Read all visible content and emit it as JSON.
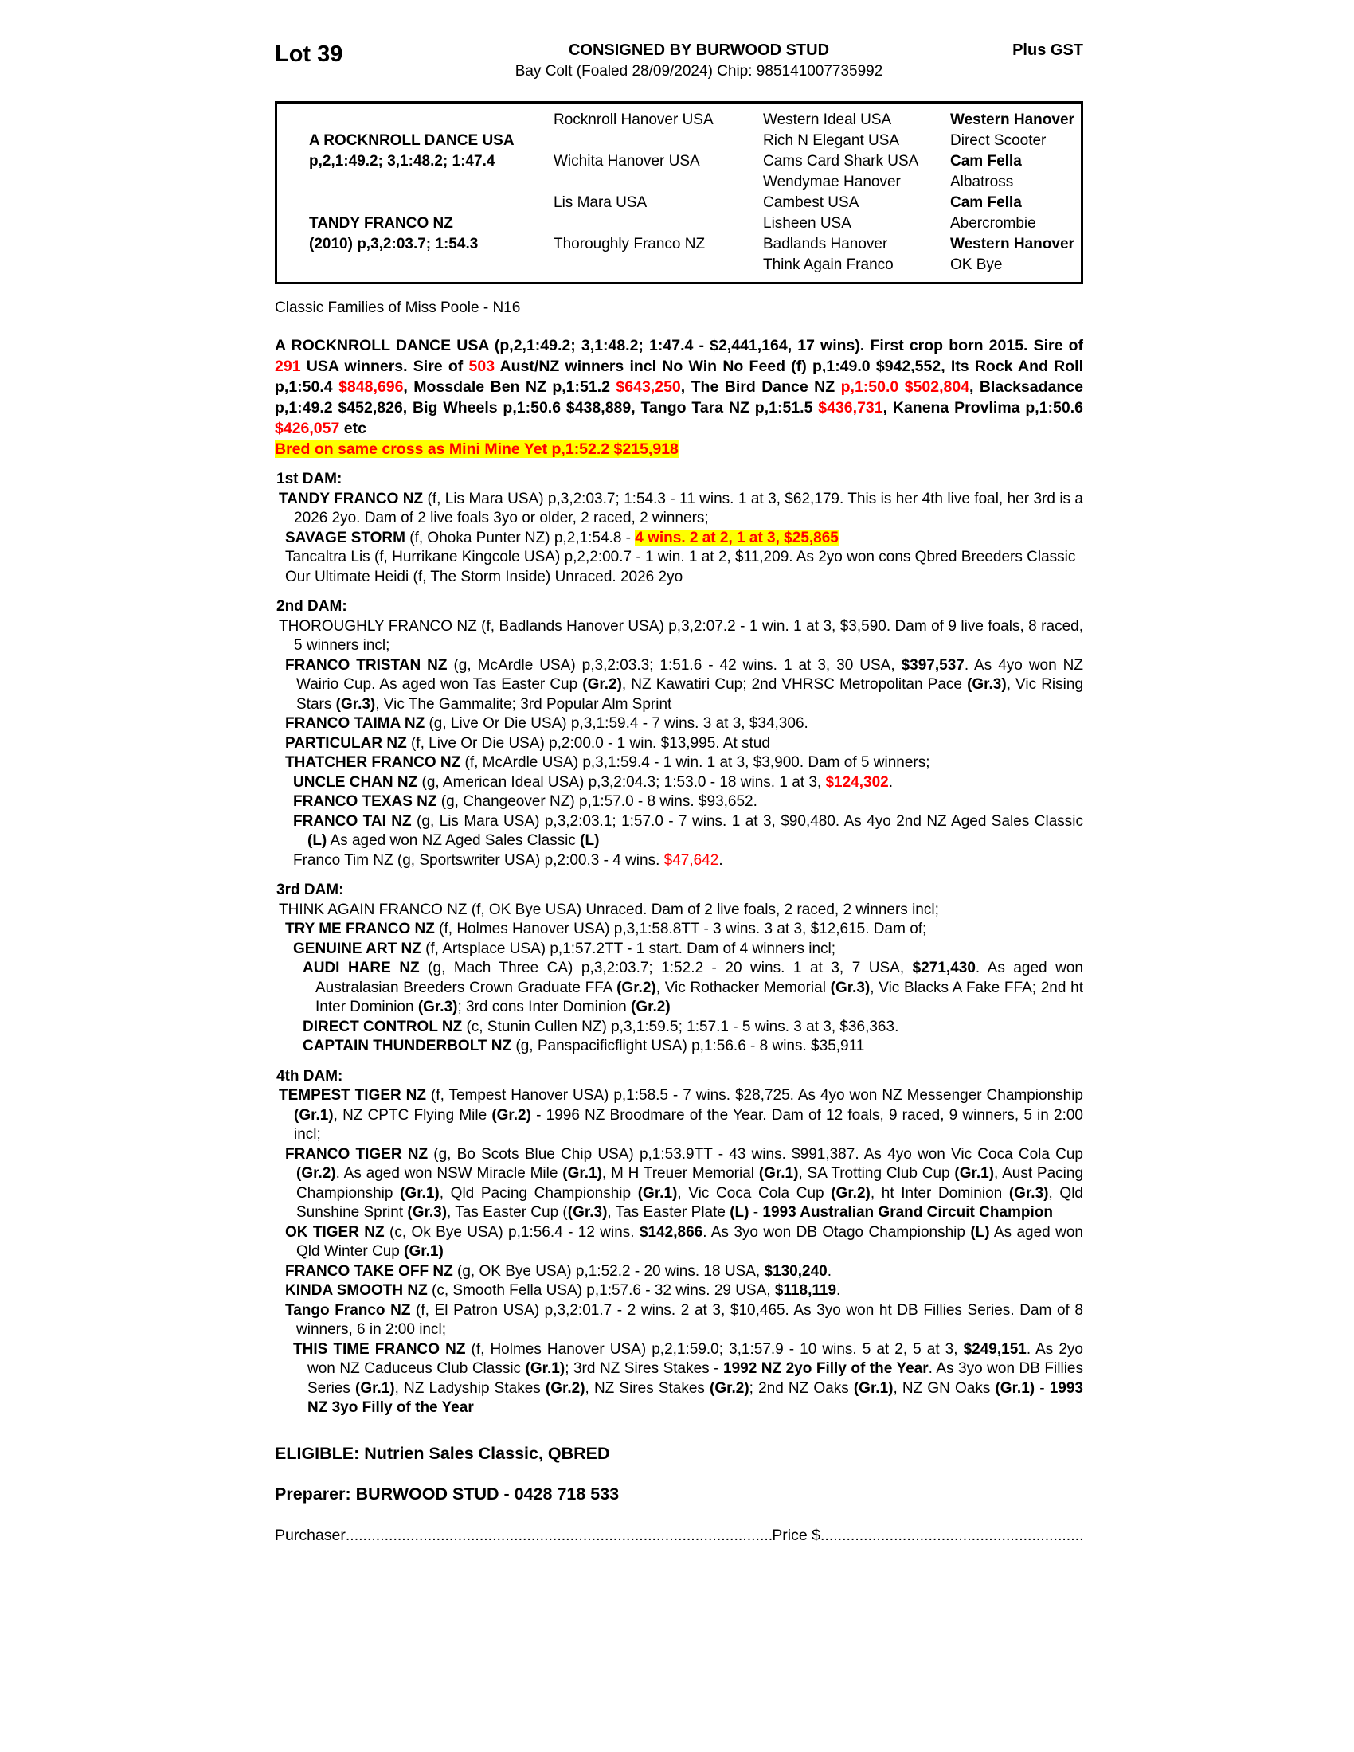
{
  "page": {
    "lot": "Lot 39",
    "consigned": "CONSIGNED BY BURWOOD STUD",
    "plus_gst": "Plus GST",
    "subtitle": "Bay Colt (Foaled 28/09/2024) Chip: 985141007735992",
    "family": "Classic Families of Miss Poole - N16",
    "eligible": "ELIGIBLE: Nutrien Sales Classic, QBRED",
    "preparer": "Preparer: BURWOOD STUD - 0428 718 533",
    "purchaser_label": "Purchaser",
    "purchaser_dots": "..............................................................................................................................",
    "price_label": "Price $",
    "price_dots": "......................................................................",
    "colors": {
      "accent_red": "#ff0000",
      "highlight_yellow": "#ffff00",
      "text": "#000000"
    }
  },
  "pedigree_table": {
    "rows": [
      {
        "c1": "",
        "c2": "Rocknroll Hanover USA",
        "c3": "Western Ideal USA",
        "c4": "Western Hanover",
        "c4b": true
      },
      {
        "c1": "A ROCKNROLL DANCE USA",
        "c2": "",
        "c3": "Rich N Elegant USA",
        "c4": "Direct Scooter",
        "c4b": false
      },
      {
        "c1": "p,2,1:49.2; 3,1:48.2; 1:47.4",
        "c2": "Wichita Hanover USA",
        "c3": "Cams Card Shark USA",
        "c4": "Cam Fella",
        "c4b": true
      },
      {
        "c1": "",
        "c2": "",
        "c3": "Wendymae Hanover",
        "c4": "Albatross",
        "c4b": false
      },
      {
        "c1": "",
        "c2": "Lis Mara USA",
        "c3": "Cambest USA",
        "c4": "Cam Fella",
        "c4b": true
      },
      {
        "c1": "TANDY FRANCO NZ",
        "c2": "",
        "c3": "Lisheen USA",
        "c4": "Abercrombie",
        "c4b": false
      },
      {
        "c1": "(2010) p,3,2:03.7; 1:54.3",
        "c2": "Thoroughly Franco NZ",
        "c3": "Badlands Hanover",
        "c4": "Western Hanover",
        "c4b": true
      },
      {
        "c1": "",
        "c2": "",
        "c3": "Think Again Franco",
        "c4": "OK Bye",
        "c4b": false
      }
    ]
  },
  "sire": {
    "para": [
      {
        "t": "A ROCKNROLL DANCE USA  (p,2,1:49.2; 3,1:48.2; 1:47.4 - $2,441,164, 17 wins). First crop born 2015. Sire of ",
        "s": "b"
      },
      {
        "t": "291",
        "s": "rb"
      },
      {
        "t": " USA winners. Sire of ",
        "s": "b"
      },
      {
        "t": "503",
        "s": "rb"
      },
      {
        "t": " Aust/NZ winners incl No Win No Feed (f) p,1:49.0 $942,552, Its Rock And Roll p,1:50.4 ",
        "s": "b"
      },
      {
        "t": "$848,696",
        "s": "rb"
      },
      {
        "t": ", Mossdale Ben NZ p,1:51.2 ",
        "s": "b"
      },
      {
        "t": "$643,250",
        "s": "rb"
      },
      {
        "t": ", The Bird Dance NZ ",
        "s": "b"
      },
      {
        "t": "p,1:50.0 $502,804",
        "s": "rb"
      },
      {
        "t": ", Blacksadance p,1:49.2 $452,826, Big Wheels p,1:50.6 $438,889, Tango Tara NZ p,1:51.5 ",
        "s": "b"
      },
      {
        "t": "$436,731",
        "s": "rb"
      },
      {
        "t": ", Kanena Provlima p,1:50.6 ",
        "s": "b"
      },
      {
        "t": "$426,057",
        "s": "rb"
      },
      {
        "t": " etc",
        "s": "b"
      }
    ],
    "cross": [
      {
        "t": "Bred on same cross as Mini Mine Yet p,1:52.2 $215,918",
        "s": "hl"
      }
    ]
  },
  "dam_sections": [
    {
      "heading": "1st DAM:",
      "entries": [
        {
          "indent": 1,
          "segments": [
            {
              "t": "TANDY FRANCO NZ ",
              "s": "b"
            },
            {
              "t": "(f, Lis Mara USA) p,3,2:03.7; 1:54.3 - 11 wins. 1 at 3, $62,179. This is her 4th live foal, her 3rd is a 2026 2yo. Dam of 2 live foals 3yo or older, 2 raced, 2 winners;",
              "s": ""
            }
          ]
        },
        {
          "indent": 2,
          "segments": [
            {
              "t": "SAVAGE STORM ",
              "s": "b"
            },
            {
              "t": "(f, Ohoka Punter NZ) p,2,1:54.8 - ",
              "s": ""
            },
            {
              "t": "4 wins. 2 at 2, 1 at 3, $25,865",
              "s": "hl"
            }
          ]
        },
        {
          "indent": 2,
          "segments": [
            {
              "t": "Tancaltra Lis (f, Hurrikane Kingcole USA) p,2,2:00.7 - 1 win. 1 at 2, $11,209. As 2yo won cons Qbred Breeders Classic",
              "s": ""
            }
          ]
        },
        {
          "indent": 2,
          "segments": [
            {
              "t": "Our Ultimate Heidi (f, The Storm Inside) Unraced. 2026 2yo",
              "s": ""
            }
          ]
        }
      ]
    },
    {
      "heading": "2nd DAM:",
      "entries": [
        {
          "indent": 1,
          "segments": [
            {
              "t": "THOROUGHLY FRANCO NZ (f, Badlands Hanover USA) p,3,2:07.2 - 1 win. 1 at 3, $3,590. Dam of 9 live foals, 8 raced, 5 winners incl;",
              "s": ""
            }
          ]
        },
        {
          "indent": 2,
          "segments": [
            {
              "t": "FRANCO TRISTAN NZ ",
              "s": "b"
            },
            {
              "t": "(g, McArdle USA) p,3,2:03.3; 1:51.6 - 42 wins. 1 at 3, 30 USA, ",
              "s": ""
            },
            {
              "t": "$397,537",
              "s": "b"
            },
            {
              "t": ". As 4yo won NZ Wairio Cup. As aged won Tas Easter Cup ",
              "s": ""
            },
            {
              "t": "(Gr.2)",
              "s": "b"
            },
            {
              "t": ", NZ Kawatiri Cup; 2nd VHRSC Metropolitan Pace ",
              "s": ""
            },
            {
              "t": "(Gr.3)",
              "s": "b"
            },
            {
              "t": ", Vic Rising Stars ",
              "s": ""
            },
            {
              "t": "(Gr.3)",
              "s": "b"
            },
            {
              "t": ", Vic The Gammalite; 3rd Popular Alm Sprint",
              "s": ""
            }
          ]
        },
        {
          "indent": 2,
          "segments": [
            {
              "t": "FRANCO TAIMA NZ ",
              "s": "b"
            },
            {
              "t": "(g, Live Or Die USA) p,3,1:59.4 - 7 wins. 3 at 3, $34,306.",
              "s": ""
            }
          ]
        },
        {
          "indent": 2,
          "segments": [
            {
              "t": "PARTICULAR NZ ",
              "s": "b"
            },
            {
              "t": "(f, Live Or Die USA) p,2:00.0 - 1 win. $13,995. At stud",
              "s": ""
            }
          ]
        },
        {
          "indent": 2,
          "segments": [
            {
              "t": "THATCHER FRANCO NZ ",
              "s": "b"
            },
            {
              "t": "(f, McArdle USA) p,3,1:59.4 - 1 win. 1 at 3, $3,900. Dam of 5 winners;",
              "s": ""
            }
          ]
        },
        {
          "indent": 3,
          "segments": [
            {
              "t": "UNCLE CHAN NZ ",
              "s": "b"
            },
            {
              "t": "(g, American Ideal USA) p,3,2:04.3; 1:53.0 - 18 wins. 1 at 3, ",
              "s": ""
            },
            {
              "t": "$124,302",
              "s": "rb"
            },
            {
              "t": ".",
              "s": ""
            }
          ]
        },
        {
          "indent": 3,
          "segments": [
            {
              "t": "FRANCO TEXAS NZ ",
              "s": "b"
            },
            {
              "t": "(g, Changeover NZ) p,1:57.0 - 8 wins. $93,652.",
              "s": ""
            }
          ]
        },
        {
          "indent": 3,
          "segments": [
            {
              "t": "FRANCO TAI NZ ",
              "s": "b"
            },
            {
              "t": "(g, Lis Mara USA) p,3,2:03.1; 1:57.0 - 7 wins. 1 at 3, $90,480. As 4yo 2nd NZ Aged Sales Classic ",
              "s": ""
            },
            {
              "t": "(L)",
              "s": "b"
            },
            {
              "t": " As aged won NZ Aged Sales Classic ",
              "s": ""
            },
            {
              "t": "(L)",
              "s": "b"
            }
          ]
        },
        {
          "indent": 3,
          "segments": [
            {
              "t": "Franco Tim NZ (g, Sportswriter USA) p,2:00.3 - 4 wins. ",
              "s": ""
            },
            {
              "t": "$47,642",
              "s": "r"
            },
            {
              "t": ".",
              "s": ""
            }
          ]
        }
      ]
    },
    {
      "heading": "3rd DAM:",
      "entries": [
        {
          "indent": 1,
          "segments": [
            {
              "t": "THINK AGAIN FRANCO NZ (f, OK Bye USA) Unraced. Dam of 2 live foals, 2 raced, 2 winners incl;",
              "s": ""
            }
          ]
        },
        {
          "indent": 2,
          "segments": [
            {
              "t": "TRY ME FRANCO NZ ",
              "s": "b"
            },
            {
              "t": "(f, Holmes Hanover USA) p,3,1:58.8TT - 3 wins. 3 at 3, $12,615. Dam of;",
              "s": ""
            }
          ]
        },
        {
          "indent": 3,
          "segments": [
            {
              "t": "GENUINE ART NZ ",
              "s": "b"
            },
            {
              "t": "(f, Artsplace USA) p,1:57.2TT - 1 start. Dam of 4 winners incl;",
              "s": ""
            }
          ]
        },
        {
          "indent": 4,
          "segments": [
            {
              "t": "AUDI HARE NZ ",
              "s": "b"
            },
            {
              "t": "(g, Mach Three CA) p,3,2:03.7; 1:52.2 - 20 wins. 1 at 3, 7 USA, ",
              "s": ""
            },
            {
              "t": "$271,430",
              "s": "b"
            },
            {
              "t": ". As aged won Australasian Breeders Crown Graduate FFA ",
              "s": ""
            },
            {
              "t": "(Gr.2)",
              "s": "b"
            },
            {
              "t": ", Vic Rothacker Memorial ",
              "s": ""
            },
            {
              "t": "(Gr.3)",
              "s": "b"
            },
            {
              "t": ", Vic Blacks A Fake FFA; 2nd ht Inter Dominion ",
              "s": ""
            },
            {
              "t": "(Gr.3)",
              "s": "b"
            },
            {
              "t": "; 3rd cons Inter Dominion ",
              "s": ""
            },
            {
              "t": "(Gr.2)",
              "s": "b"
            }
          ]
        },
        {
          "indent": 4,
          "segments": [
            {
              "t": "DIRECT CONTROL NZ ",
              "s": "b"
            },
            {
              "t": "(c, Stunin Cullen NZ) p,3,1:59.5; 1:57.1 - 5 wins. 3 at 3, $36,363.",
              "s": ""
            }
          ]
        },
        {
          "indent": 4,
          "segments": [
            {
              "t": "CAPTAIN THUNDERBOLT NZ ",
              "s": "b"
            },
            {
              "t": "(g, Panspacificflight USA) p,1:56.6 - 8 wins. $35,911",
              "s": ""
            }
          ]
        }
      ]
    },
    {
      "heading": "4th DAM:",
      "entries": [
        {
          "indent": 1,
          "segments": [
            {
              "t": "TEMPEST TIGER NZ ",
              "s": "b"
            },
            {
              "t": "(f, Tempest Hanover USA) p,1:58.5 - 7 wins. $28,725. As 4yo won NZ Messenger Championship ",
              "s": ""
            },
            {
              "t": "(Gr.1)",
              "s": "b"
            },
            {
              "t": ", NZ CPTC Flying Mile ",
              "s": ""
            },
            {
              "t": "(Gr.2)",
              "s": "b"
            },
            {
              "t": " - 1996 NZ Broodmare of the Year. Dam of 12 foals, 9 raced, 9 winners, 5 in 2:00 incl;",
              "s": ""
            }
          ]
        },
        {
          "indent": 2,
          "segments": [
            {
              "t": "FRANCO TIGER NZ ",
              "s": "b"
            },
            {
              "t": "(g, Bo Scots Blue Chip USA) p,1:53.9TT - 43 wins. $991,387. As 4yo won Vic Coca Cola Cup ",
              "s": ""
            },
            {
              "t": "(Gr.2)",
              "s": "b"
            },
            {
              "t": ". As aged won NSW Miracle Mile ",
              "s": ""
            },
            {
              "t": "(Gr.1)",
              "s": "b"
            },
            {
              "t": ", M H Treuer Memorial ",
              "s": ""
            },
            {
              "t": "(Gr.1)",
              "s": "b"
            },
            {
              "t": ", SA Trotting Club Cup ",
              "s": ""
            },
            {
              "t": "(Gr.1)",
              "s": "b"
            },
            {
              "t": ", Aust Pacing Championship ",
              "s": ""
            },
            {
              "t": "(Gr.1)",
              "s": "b"
            },
            {
              "t": ", Qld Pacing Championship ",
              "s": ""
            },
            {
              "t": "(Gr.1)",
              "s": "b"
            },
            {
              "t": ", Vic Coca Cola Cup ",
              "s": ""
            },
            {
              "t": "(Gr.2)",
              "s": "b"
            },
            {
              "t": ", ht Inter Dominion ",
              "s": ""
            },
            {
              "t": "(Gr.3)",
              "s": "b"
            },
            {
              "t": ", Qld Sunshine Sprint ",
              "s": ""
            },
            {
              "t": "(Gr.3)",
              "s": "b"
            },
            {
              "t": ", Tas Easter Cup (",
              "s": ""
            },
            {
              "t": "(Gr.3)",
              "s": "b"
            },
            {
              "t": ", Tas Easter Plate ",
              "s": ""
            },
            {
              "t": "(L)",
              "s": "b"
            },
            {
              "t": " - ",
              "s": ""
            },
            {
              "t": "1993 Australian Grand Circuit Champion",
              "s": "b"
            }
          ]
        },
        {
          "indent": 2,
          "segments": [
            {
              "t": "OK TIGER NZ ",
              "s": "b"
            },
            {
              "t": "(c, Ok Bye USA) p,1:56.4 - 12 wins. ",
              "s": ""
            },
            {
              "t": "$142,866",
              "s": "b"
            },
            {
              "t": ". As 3yo won DB Otago Championship ",
              "s": ""
            },
            {
              "t": "(L)",
              "s": "b"
            },
            {
              "t": " As aged won Qld Winter Cup ",
              "s": ""
            },
            {
              "t": "(Gr.1)",
              "s": "b"
            }
          ]
        },
        {
          "indent": 2,
          "segments": [
            {
              "t": "FRANCO TAKE OFF NZ ",
              "s": "b"
            },
            {
              "t": "(g, OK Bye USA) p,1:52.2 - 20 wins. 18 USA, ",
              "s": ""
            },
            {
              "t": "$130,240",
              "s": "b"
            },
            {
              "t": ".",
              "s": ""
            }
          ]
        },
        {
          "indent": 2,
          "segments": [
            {
              "t": "KINDA SMOOTH NZ ",
              "s": "b"
            },
            {
              "t": "(c, Smooth Fella USA) p,1:57.6 - 32 wins. 29 USA, ",
              "s": ""
            },
            {
              "t": "$118,119",
              "s": "b"
            },
            {
              "t": ".",
              "s": ""
            }
          ]
        },
        {
          "indent": 2,
          "segments": [
            {
              "t": "Tango Franco NZ ",
              "s": "b"
            },
            {
              "t": "(f, El Patron USA) p,3,2:01.7 - 2 wins. 2 at 3, $10,465. As 3yo won ht DB Fillies Series. Dam of 8 winners, 6 in 2:00 incl;",
              "s": ""
            }
          ]
        },
        {
          "indent": 3,
          "segments": [
            {
              "t": "THIS TIME FRANCO NZ ",
              "s": "b"
            },
            {
              "t": "(f, Holmes Hanover USA) p,2,1:59.0; 3,1:57.9 - 10 wins. 5 at 2, 5 at 3, ",
              "s": ""
            },
            {
              "t": "$249,151",
              "s": "b"
            },
            {
              "t": ". As 2yo won NZ Caduceus Club Classic ",
              "s": ""
            },
            {
              "t": "(Gr.1)",
              "s": "b"
            },
            {
              "t": "; 3rd NZ Sires Stakes - ",
              "s": ""
            },
            {
              "t": "1992 NZ 2yo Filly of the Year",
              "s": "b"
            },
            {
              "t": ". As 3yo won DB Fillies Series ",
              "s": ""
            },
            {
              "t": "(Gr.1)",
              "s": "b"
            },
            {
              "t": ", NZ Ladyship Stakes ",
              "s": ""
            },
            {
              "t": "(Gr.2)",
              "s": "b"
            },
            {
              "t": ", NZ Sires Stakes ",
              "s": ""
            },
            {
              "t": "(Gr.2)",
              "s": "b"
            },
            {
              "t": "; 2nd NZ Oaks ",
              "s": ""
            },
            {
              "t": "(Gr.1)",
              "s": "b"
            },
            {
              "t": ", NZ GN Oaks ",
              "s": ""
            },
            {
              "t": "(Gr.1)",
              "s": "b"
            },
            {
              "t": " - ",
              "s": ""
            },
            {
              "t": "1993 NZ 3yo Filly of the Year",
              "s": "b"
            }
          ]
        }
      ]
    }
  ]
}
